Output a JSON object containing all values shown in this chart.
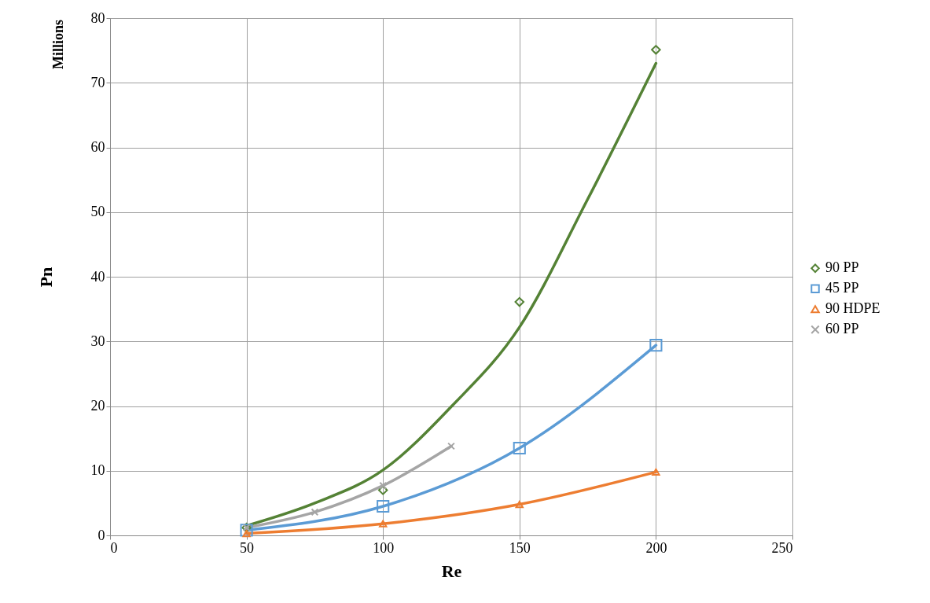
{
  "chart_data": {
    "type": "scatter",
    "xlabel": "Re",
    "ylabel": "Pn",
    "annotations": [
      "Millions"
    ],
    "xlim": [
      0,
      250
    ],
    "xticks": [
      0,
      50,
      100,
      150,
      200,
      250
    ],
    "ylim": [
      0,
      80
    ],
    "yticks": [
      0,
      10,
      20,
      30,
      40,
      50,
      60,
      70,
      80
    ],
    "grid": true,
    "legend": "right",
    "series": [
      {
        "name": "90 PP",
        "marker": "diamond",
        "color": "#548235",
        "x": [
          50,
          100,
          150,
          200
        ],
        "values": [
          1.2,
          7.0,
          36.1,
          75.1
        ]
      },
      {
        "type": "line",
        "marker": "none",
        "color": "#548235",
        "x": [
          50,
          75,
          100,
          125,
          150,
          175,
          200
        ],
        "values": [
          1.5,
          5.0,
          10.1,
          19.9,
          32.2,
          52,
          73.0
        ]
      },
      {
        "name": "45 PP",
        "type": "line",
        "marker": "square",
        "color": "#5b9bd5",
        "x": [
          50,
          100,
          150,
          200
        ],
        "values": [
          0.8,
          4.5,
          13.5,
          29.4
        ]
      },
      {
        "name": "90 HDPE",
        "type": "line",
        "marker": "triangle",
        "color": "#ed7d31",
        "x": [
          50,
          100,
          150,
          200
        ],
        "values": [
          0.3,
          1.8,
          4.8,
          9.8
        ]
      },
      {
        "name": "60 PP",
        "type": "line",
        "marker": "cross",
        "color": "#a5a5a5",
        "x": [
          50,
          75,
          100,
          125
        ],
        "values": [
          1.2,
          3.6,
          7.7,
          13.8
        ]
      }
    ]
  }
}
